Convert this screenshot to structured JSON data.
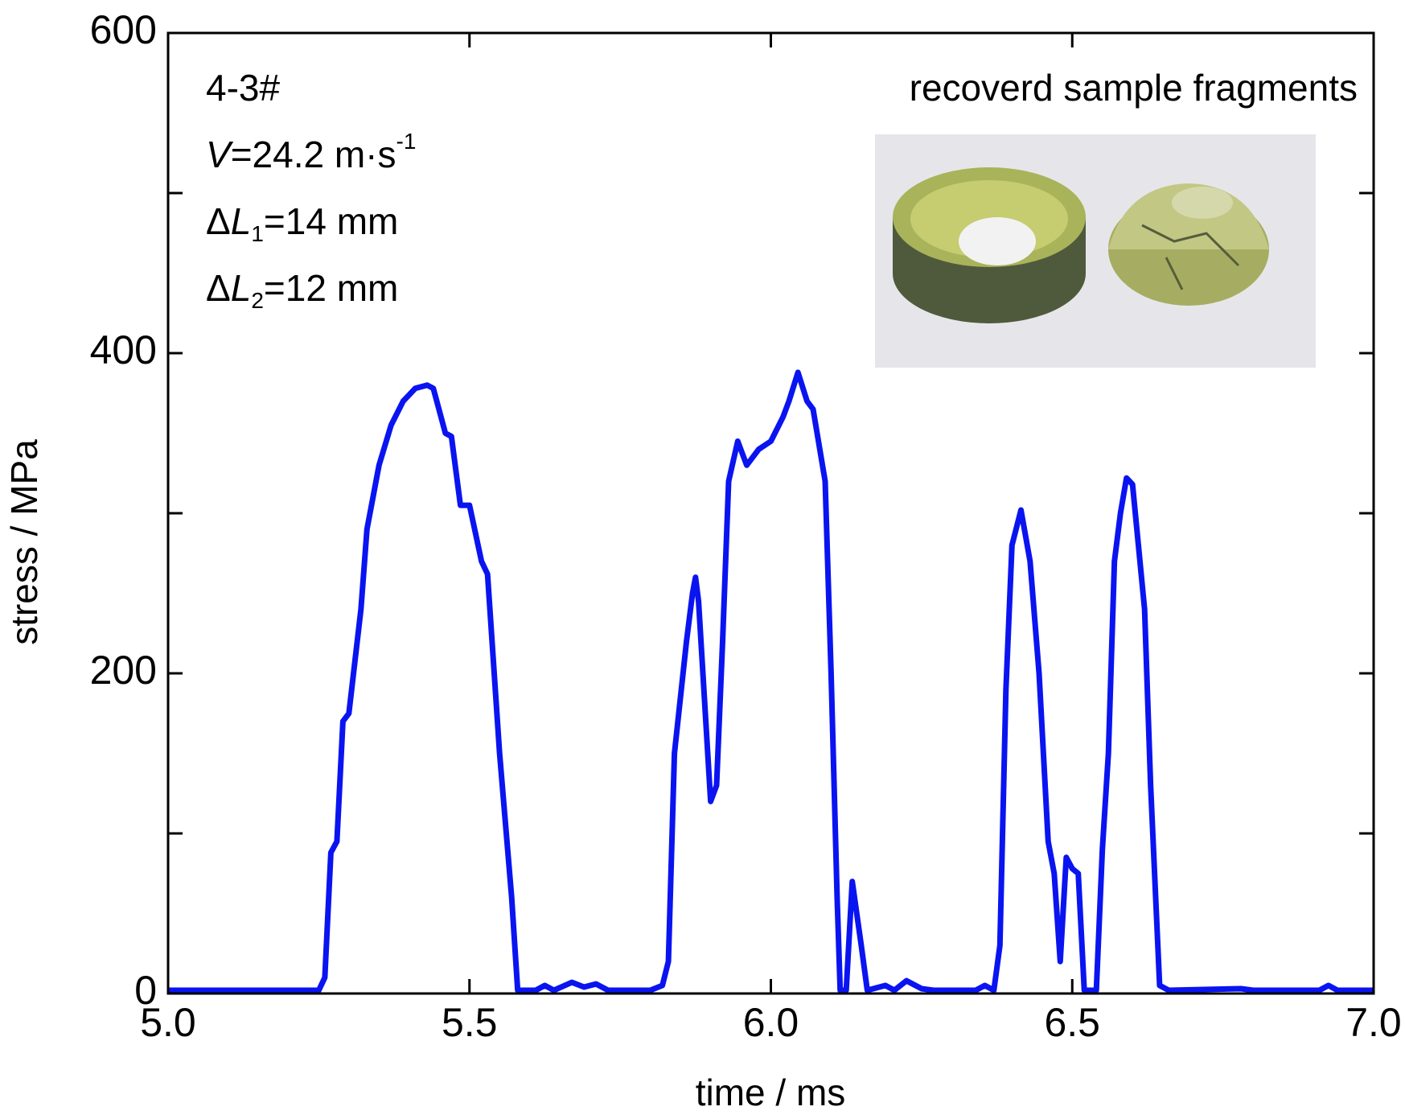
{
  "chart_data": {
    "type": "line",
    "xlabel": "time / ms",
    "ylabel": "stress / MPa",
    "annotations": [
      [
        "4-3#"
      ],
      [
        "V",
        "=24.2 m·s",
        "-1"
      ],
      [
        "Δ",
        "L",
        "1",
        "=14 mm"
      ],
      [
        "Δ",
        "L",
        "2",
        "=12 mm"
      ]
    ],
    "inset_label": "recoverd sample fragments",
    "color": "#0a14f0",
    "x": [
      5.0,
      5.25,
      5.26,
      5.27,
      5.28,
      5.29,
      5.3,
      5.32,
      5.33,
      5.35,
      5.37,
      5.39,
      5.41,
      5.43,
      5.44,
      5.46,
      5.47,
      5.485,
      5.5,
      5.52,
      5.53,
      5.55,
      5.57,
      5.58,
      5.61,
      5.625,
      5.64,
      5.67,
      5.69,
      5.71,
      5.73,
      5.8,
      5.82,
      5.83,
      5.84,
      5.86,
      5.87,
      5.875,
      5.88,
      5.9,
      5.91,
      5.92,
      5.93,
      5.945,
      5.96,
      5.98,
      6.0,
      6.02,
      6.03,
      6.045,
      6.06,
      6.07,
      6.09,
      6.1,
      6.11,
      6.115,
      6.125,
      6.135,
      6.15,
      6.16,
      6.19,
      6.205,
      6.225,
      6.25,
      6.27,
      6.34,
      6.355,
      6.37,
      6.38,
      6.39,
      6.4,
      6.415,
      6.43,
      6.445,
      6.46,
      6.47,
      6.48,
      6.49,
      6.5,
      6.51,
      6.52,
      6.54,
      6.55,
      6.56,
      6.57,
      6.58,
      6.59,
      6.6,
      6.62,
      6.63,
      6.645,
      6.66,
      6.78,
      6.8,
      6.91,
      6.925,
      6.94,
      7.0
    ],
    "values": [
      2,
      2,
      10,
      88,
      95,
      170,
      175,
      240,
      290,
      330,
      355,
      370,
      378,
      380,
      378,
      350,
      348,
      305,
      305,
      270,
      262,
      150,
      60,
      2,
      2,
      5,
      2,
      7,
      4,
      6,
      2,
      2,
      5,
      20,
      150,
      220,
      250,
      260,
      245,
      120,
      130,
      220,
      320,
      345,
      330,
      340,
      345,
      360,
      370,
      388,
      370,
      365,
      320,
      200,
      60,
      2,
      2,
      70,
      30,
      2,
      5,
      2,
      8,
      3,
      2,
      2,
      5,
      2,
      30,
      190,
      280,
      302,
      270,
      200,
      95,
      75,
      20,
      85,
      78,
      75,
      2,
      2,
      90,
      150,
      270,
      300,
      322,
      318,
      240,
      130,
      5,
      2,
      3,
      2,
      2,
      5,
      2,
      2
    ],
    "xlim": [
      5.0,
      7.0
    ],
    "xticks": [
      {
        "value": 5.0,
        "label": "5.0"
      },
      5.5,
      {
        "value": 6.0,
        "label": "6.0"
      },
      6.5,
      {
        "value": 7.0,
        "label": "7.0"
      }
    ],
    "ylim": [
      0,
      600
    ],
    "yticks": [
      0,
      200,
      400,
      600
    ],
    "minor_yticks": [
      100,
      300,
      500
    ],
    "grid": false
  }
}
